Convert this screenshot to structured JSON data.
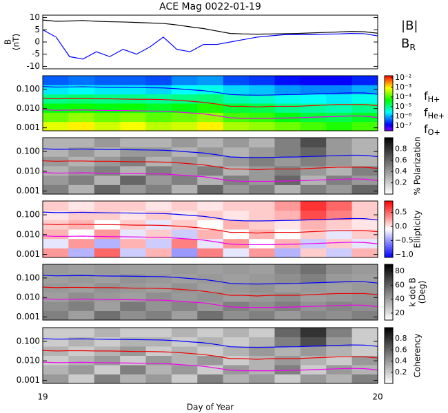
{
  "chart_data": [
    {
      "type": "line",
      "title": "ACE Mag 0022-01-19",
      "ylabel": [
        "B",
        "(nT)"
      ],
      "xlim": [
        19,
        20
      ],
      "ylim": [
        -11,
        11
      ],
      "yticks": [
        -10,
        -5,
        0,
        5,
        10
      ],
      "x": [
        19,
        19.04,
        19.08,
        19.12,
        19.16,
        19.2,
        19.24,
        19.28,
        19.32,
        19.36,
        19.4,
        19.44,
        19.48,
        19.52,
        19.56,
        19.6,
        19.64,
        19.68,
        19.72,
        19.76,
        19.8,
        19.84,
        19.88,
        19.92,
        19.96,
        20
      ],
      "series": [
        {
          "name": "|B|",
          "color": "#000000",
          "values": [
            9,
            8.5,
            8.6,
            8.8,
            8.5,
            8.3,
            8.2,
            8,
            7.8,
            7.6,
            7,
            6.2,
            5.5,
            4.5,
            3.5,
            3.3,
            3.2,
            3.3,
            3.4,
            3.5,
            3.7,
            3.9,
            4.1,
            4.3,
            4.2,
            3.6
          ]
        },
        {
          "name": "B",
          "sub": "R",
          "color": "#0000ff",
          "values": [
            5,
            2,
            -6,
            -7,
            -4,
            -6,
            -3,
            -5,
            -2,
            2,
            -3,
            -4,
            -1,
            -1,
            0,
            1,
            2,
            2.5,
            3,
            3,
            3,
            3.2,
            3.3,
            3.5,
            3.4,
            2.5
          ]
        }
      ]
    },
    {
      "type": "heatmap",
      "colormap": "rainbow",
      "xlim": [
        19,
        20
      ],
      "ylog": true,
      "ylim": [
        0.0007,
        0.5
      ],
      "yticks": [
        {
          "value": 0.001,
          "label": "0.001"
        },
        {
          "value": 0.01,
          "label": "0.010"
        },
        {
          "value": 0.1,
          "label": "0.100"
        }
      ],
      "zlim": [
        -7.5,
        -1.8
      ],
      "zticks": [
        {
          "value": -2,
          "label": "10⁻²"
        },
        {
          "value": -3,
          "label": "10⁻³"
        },
        {
          "value": -4,
          "label": "10⁻⁴"
        },
        {
          "value": -5,
          "label": "10⁻⁵"
        },
        {
          "value": -6,
          "label": "10⁻⁶"
        },
        {
          "value": -7,
          "label": "10⁻⁷"
        }
      ],
      "z": [
        [
          -3.2,
          -3.0,
          -3.3,
          -3.1,
          -3.4,
          -3.3,
          -3.0,
          -3.5,
          -3.6,
          -3.8,
          -4.0,
          -4.2,
          -4.0
        ],
        [
          -3.8,
          -3.6,
          -3.8,
          -3.7,
          -3.9,
          -3.8,
          -3.6,
          -4.0,
          -4.1,
          -4.4,
          -4.6,
          -4.7,
          -4.5
        ],
        [
          -4.4,
          -4.3,
          -4.4,
          -4.3,
          -4.5,
          -4.4,
          -4.2,
          -4.6,
          -4.7,
          -5.0,
          -5.1,
          -5.2,
          -5.0
        ],
        [
          -5.0,
          -4.9,
          -5.0,
          -5.0,
          -5.1,
          -5.0,
          -4.9,
          -5.2,
          -5.3,
          -5.5,
          -5.6,
          -5.7,
          -5.5
        ],
        [
          -5.7,
          -5.6,
          -5.7,
          -5.7,
          -5.8,
          -5.6,
          -5.5,
          -5.8,
          -5.9,
          -6.1,
          -6.2,
          -6.2,
          -6.0
        ],
        [
          -6.4,
          -6.3,
          -6.4,
          -6.4,
          -6.5,
          -6.2,
          -6.1,
          -6.5,
          -6.6,
          -6.8,
          -6.9,
          -6.9,
          -6.7
        ]
      ],
      "x": [
        19,
        19.04,
        19.08,
        19.12,
        19.16,
        19.2,
        19.24,
        19.28,
        19.32,
        19.36,
        19.4,
        19.44,
        19.48,
        19.52,
        19.56,
        19.6,
        19.64,
        19.68,
        19.72,
        19.76,
        19.8,
        19.84,
        19.88,
        19.92,
        19.96,
        20
      ],
      "series": [
        {
          "name": "f",
          "sub": "H+",
          "color": "#0000ff",
          "values": [
            0.137,
            0.129,
            0.131,
            0.134,
            0.129,
            0.126,
            0.125,
            0.122,
            0.119,
            0.116,
            0.106,
            0.094,
            0.084,
            0.068,
            0.053,
            0.05,
            0.049,
            0.05,
            0.052,
            0.053,
            0.056,
            0.059,
            0.062,
            0.065,
            0.064,
            0.055
          ]
        },
        {
          "name": "f",
          "sub": "He+",
          "color": "#ee0000",
          "values": [
            0.034,
            0.032,
            0.033,
            0.033,
            0.032,
            0.032,
            0.031,
            0.03,
            0.03,
            0.029,
            0.027,
            0.024,
            0.021,
            0.017,
            0.013,
            0.013,
            0.012,
            0.013,
            0.013,
            0.013,
            0.014,
            0.015,
            0.016,
            0.016,
            0.016,
            0.014
          ]
        },
        {
          "name": "f",
          "sub": "O+",
          "color": "#ee00ee",
          "values": [
            0.0086,
            0.0081,
            0.0082,
            0.0084,
            0.0081,
            0.0079,
            0.0078,
            0.0076,
            0.0074,
            0.0073,
            0.0066,
            0.0059,
            0.0053,
            0.0042,
            0.0033,
            0.0031,
            0.0031,
            0.0031,
            0.0032,
            0.0033,
            0.0035,
            0.0037,
            0.0039,
            0.0041,
            0.004,
            0.0034
          ]
        }
      ]
    },
    {
      "type": "heatmap",
      "colormap": "gray",
      "xlim": [
        19,
        20
      ],
      "ylog": true,
      "ylim": [
        0.0007,
        0.5
      ],
      "yticks": [
        {
          "value": 0.001,
          "label": "0.001"
        },
        {
          "value": 0.01,
          "label": "0.010"
        },
        {
          "value": 0.1,
          "label": "0.100"
        }
      ],
      "zlim": [
        0,
        1
      ],
      "zticks": [
        0.2,
        0.4,
        0.6,
        0.8
      ],
      "zlabel": [
        "% Polarization"
      ],
      "z": [
        [
          0.5,
          0.3,
          0.6,
          0.4,
          0.5,
          0.3,
          0.6,
          0.4,
          0.5,
          0.3,
          0.5,
          0.4,
          0.6
        ],
        [
          0.4,
          0.5,
          0.3,
          0.6,
          0.4,
          0.5,
          0.3,
          0.5,
          0.4,
          0.6,
          0.3,
          0.5,
          0.4
        ],
        [
          0.3,
          0.4,
          0.5,
          0.3,
          0.5,
          0.4,
          0.5,
          0.3,
          0.4,
          0.5,
          0.4,
          0.3,
          0.5
        ],
        [
          0.4,
          0.3,
          0.4,
          0.5,
          0.3,
          0.4,
          0.3,
          0.4,
          0.5,
          0.4,
          0.5,
          0.4,
          0.3
        ],
        [
          0.3,
          0.4,
          0.3,
          0.4,
          0.4,
          0.3,
          0.4,
          0.3,
          0.4,
          0.5,
          0.6,
          0.4,
          0.3
        ],
        [
          0.3,
          0.3,
          0.4,
          0.3,
          0.3,
          0.4,
          0.3,
          0.4,
          0.3,
          0.5,
          0.7,
          0.4,
          0.3
        ]
      ]
    },
    {
      "type": "heatmap",
      "colormap": "bwr",
      "xlim": [
        19,
        20
      ],
      "ylog": true,
      "ylim": [
        0.0007,
        0.5
      ],
      "yticks": [
        {
          "value": 0.001,
          "label": "0.001"
        },
        {
          "value": 0.01,
          "label": "0.010"
        },
        {
          "value": 0.1,
          "label": "0.100"
        }
      ],
      "zlim": [
        -1.1,
        0.9
      ],
      "zticks": [
        {
          "value": -1,
          "label": "−1.0"
        },
        {
          "value": -0.5,
          "label": "−0.5"
        },
        {
          "value": 0,
          "label": "0.0"
        },
        0.5
      ],
      "zlabel": [
        "Ellipticity"
      ],
      "z": [
        [
          0.3,
          -0.4,
          0.5,
          -0.3,
          0.2,
          -0.5,
          0.4,
          -0.2,
          0.3,
          -0.4,
          0.1,
          -0.3,
          0.2
        ],
        [
          -0.2,
          0.3,
          -0.4,
          0.2,
          -0.3,
          0.4,
          -0.2,
          0.3,
          -0.1,
          0.2,
          -0.3,
          0.1,
          -0.2
        ],
        [
          0.2,
          -0.1,
          0.3,
          -0.2,
          0.1,
          -0.3,
          0.2,
          -0.1,
          0.2,
          -0.1,
          0.1,
          -0.2,
          0.1
        ],
        [
          0.1,
          0.2,
          -0.1,
          0.1,
          -0.2,
          0.1,
          -0.1,
          0.2,
          0.1,
          0,
          0.2,
          0.1,
          0
        ],
        [
          0,
          0.1,
          0.1,
          0,
          0.1,
          0,
          0.1,
          0,
          0.1,
          0.2,
          0.6,
          0.4,
          0.1
        ],
        [
          0.1,
          0,
          0.1,
          0.1,
          0,
          0.1,
          0,
          0.1,
          0.1,
          0.3,
          0.7,
          0.5,
          0.1
        ]
      ]
    },
    {
      "type": "heatmap",
      "colormap": "gray",
      "xlim": [
        19,
        20
      ],
      "ylog": true,
      "ylim": [
        0.0007,
        0.5
      ],
      "yticks": [
        {
          "value": 0.001,
          "label": "0.001"
        },
        {
          "value": 0.01,
          "label": "0.010"
        },
        {
          "value": 0.1,
          "label": "0.100"
        }
      ],
      "zlim": [
        10,
        90
      ],
      "zticks": [
        20,
        40,
        60,
        80
      ],
      "zlabel": [
        "k dot B",
        "(Deg)"
      ],
      "z": [
        [
          50,
          40,
          55,
          45,
          50,
          40,
          55,
          45,
          50,
          42,
          48,
          45,
          50
        ],
        [
          45,
          50,
          40,
          52,
          44,
          48,
          42,
          50,
          45,
          50,
          44,
          48,
          45
        ],
        [
          40,
          45,
          42,
          40,
          45,
          42,
          44,
          40,
          42,
          45,
          40,
          42,
          44
        ],
        [
          42,
          40,
          44,
          42,
          40,
          44,
          40,
          42,
          44,
          40,
          42,
          40,
          42
        ],
        [
          40,
          42,
          40,
          44,
          42,
          40,
          42,
          40,
          42,
          45,
          50,
          42,
          40
        ],
        [
          42,
          40,
          42,
          40,
          40,
          42,
          40,
          42,
          40,
          48,
          55,
          45,
          42
        ]
      ]
    },
    {
      "type": "heatmap",
      "colormap": "gray",
      "xlim": [
        19,
        20
      ],
      "ylog": true,
      "ylim": [
        0.0007,
        0.5
      ],
      "yticks": [
        {
          "value": 0.001,
          "label": "0.001"
        },
        {
          "value": 0.01,
          "label": "0.010"
        },
        {
          "value": 0.1,
          "label": "0.100"
        }
      ],
      "zlim": [
        0,
        1
      ],
      "zticks": [
        0.2,
        0.4,
        0.6,
        0.8
      ],
      "zlabel": [
        "Coherency"
      ],
      "xticks": [
        19,
        20
      ],
      "xlabel": "Day of Year",
      "z": [
        [
          0.4,
          0.2,
          0.5,
          0.3,
          0.4,
          0.2,
          0.5,
          0.3,
          0.4,
          0.2,
          0.4,
          0.3,
          0.5
        ],
        [
          0.3,
          0.4,
          0.2,
          0.5,
          0.3,
          0.4,
          0.2,
          0.4,
          0.3,
          0.5,
          0.2,
          0.4,
          0.3
        ],
        [
          0.2,
          0.3,
          0.4,
          0.2,
          0.4,
          0.3,
          0.4,
          0.2,
          0.3,
          0.4,
          0.3,
          0.2,
          0.4
        ],
        [
          0.3,
          0.2,
          0.3,
          0.4,
          0.2,
          0.3,
          0.2,
          0.3,
          0.4,
          0.3,
          0.4,
          0.3,
          0.2
        ],
        [
          0.2,
          0.3,
          0.2,
          0.3,
          0.3,
          0.2,
          0.3,
          0.2,
          0.3,
          0.5,
          0.7,
          0.4,
          0.2
        ],
        [
          0.2,
          0.2,
          0.3,
          0.2,
          0.2,
          0.3,
          0.2,
          0.3,
          0.2,
          0.6,
          0.8,
          0.5,
          0.2
        ]
      ]
    }
  ]
}
